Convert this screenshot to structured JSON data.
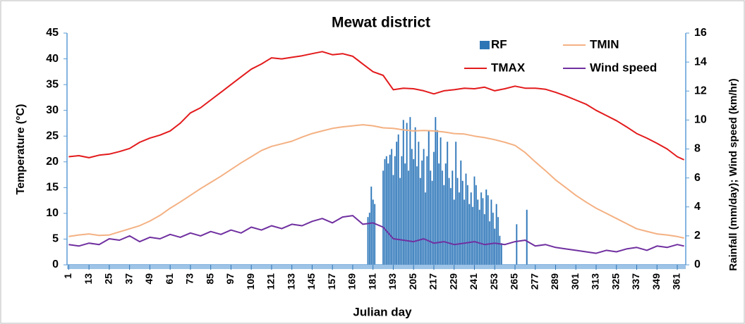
{
  "chart_data": {
    "type": "combo",
    "title": "Mewat district",
    "x_label": "Julian day",
    "y_label": "Temperature (°C)",
    "y2_label": "Rainfall (mm/day);  Wind speed (km/hr)",
    "xlim": [
      0,
      366
    ],
    "xticks": [
      1,
      13,
      25,
      37,
      49,
      61,
      73,
      85,
      97,
      109,
      121,
      133,
      145,
      157,
      169,
      181,
      193,
      205,
      217,
      229,
      241,
      253,
      265,
      277,
      289,
      301,
      313,
      325,
      337,
      349,
      361
    ],
    "ylim": [
      0,
      45
    ],
    "yticks": [
      0,
      5,
      10,
      15,
      20,
      25,
      30,
      35,
      40,
      45
    ],
    "y2lim": [
      0,
      16
    ],
    "y2ticks": [
      0,
      2,
      4,
      6,
      8,
      10,
      12,
      14,
      16
    ],
    "legend": "top-right",
    "series": [
      {
        "name": "RF",
        "type": "bar",
        "axis": "y2",
        "color": "#2e75b6",
        "x": [
          178,
          179,
          180,
          181,
          182,
          187,
          188,
          189,
          190,
          191,
          192,
          193,
          194,
          195,
          196,
          197,
          198,
          199,
          200,
          201,
          202,
          203,
          204,
          205,
          206,
          207,
          208,
          209,
          210,
          211,
          212,
          213,
          214,
          215,
          216,
          217,
          218,
          219,
          220,
          221,
          222,
          223,
          224,
          225,
          226,
          227,
          228,
          229,
          230,
          231,
          232,
          233,
          234,
          235,
          236,
          237,
          238,
          239,
          240,
          241,
          242,
          243,
          244,
          245,
          246,
          247,
          248,
          249,
          250,
          251,
          252,
          253,
          254,
          255,
          256,
          257,
          266,
          272
        ],
        "values": [
          3.3,
          3.6,
          5.4,
          4.5,
          4.2,
          6.5,
          7.3,
          7.5,
          7.0,
          7.6,
          8.0,
          6.2,
          7.5,
          8.5,
          9.0,
          6.0,
          7.5,
          10.0,
          7.0,
          9.8,
          6.5,
          10.2,
          8.0,
          7.3,
          9.5,
          6.8,
          8.5,
          6.0,
          7.2,
          8.0,
          5.0,
          7.5,
          9.3,
          6.5,
          5.8,
          7.8,
          10.2,
          9.3,
          7.0,
          8.8,
          6.5,
          5.5,
          7.0,
          8.5,
          6.0,
          5.3,
          6.5,
          4.5,
          8.5,
          6.0,
          5.0,
          7.2,
          5.8,
          4.5,
          6.3,
          5.5,
          4.2,
          5.0,
          4.0,
          6.1,
          5.5,
          4.5,
          3.8,
          5.0,
          4.6,
          3.5,
          5.2,
          4.8,
          3.0,
          4.5,
          3.6,
          2.5,
          4.2,
          3.3,
          2.0,
          1.5,
          2.8,
          3.8
        ]
      },
      {
        "name": "TMIN",
        "type": "line",
        "axis": "y",
        "color": "#f4b183",
        "x": [
          1,
          7,
          13,
          19,
          25,
          31,
          37,
          43,
          49,
          55,
          61,
          67,
          73,
          79,
          85,
          91,
          97,
          103,
          109,
          115,
          121,
          127,
          133,
          139,
          145,
          151,
          157,
          163,
          169,
          175,
          181,
          187,
          193,
          199,
          205,
          211,
          217,
          223,
          229,
          235,
          241,
          247,
          253,
          259,
          265,
          271,
          277,
          283,
          289,
          295,
          301,
          307,
          313,
          319,
          325,
          331,
          337,
          343,
          349,
          355,
          361,
          365
        ],
        "values": [
          5.5,
          5.8,
          6,
          5.7,
          5.8,
          6.4,
          7,
          7.6,
          8.5,
          9.6,
          11,
          12.2,
          13.5,
          14.8,
          16,
          17.2,
          18.5,
          19.8,
          21,
          22.2,
          23,
          23.5,
          24,
          24.8,
          25.5,
          26,
          26.5,
          26.8,
          27,
          27.2,
          27,
          26.6,
          26.5,
          26.2,
          26,
          26.1,
          26,
          25.8,
          25.5,
          25.4,
          25,
          24.7,
          24.3,
          23.8,
          23.2,
          21.8,
          20,
          18.3,
          16.5,
          15,
          13.5,
          12.2,
          11,
          10,
          9,
          8,
          7,
          6.5,
          6,
          5.8,
          5.5,
          5.2
        ]
      },
      {
        "name": "TMAX",
        "type": "line",
        "axis": "y",
        "color": "#e31a1c",
        "x": [
          1,
          7,
          13,
          19,
          25,
          31,
          37,
          43,
          49,
          55,
          61,
          67,
          73,
          79,
          85,
          91,
          97,
          103,
          109,
          115,
          121,
          127,
          133,
          139,
          145,
          151,
          157,
          163,
          169,
          175,
          181,
          187,
          193,
          199,
          205,
          211,
          217,
          223,
          229,
          235,
          241,
          247,
          253,
          259,
          265,
          271,
          277,
          283,
          289,
          295,
          301,
          307,
          313,
          319,
          325,
          331,
          337,
          343,
          349,
          355,
          361,
          365
        ],
        "values": [
          21,
          21.2,
          20.8,
          21.3,
          21.5,
          22,
          22.6,
          23.8,
          24.6,
          25.2,
          26,
          27.5,
          29.5,
          30.5,
          32,
          33.5,
          35,
          36.5,
          38,
          39,
          40.2,
          40,
          40.3,
          40.6,
          41,
          41.4,
          40.8,
          41,
          40.5,
          39,
          37.5,
          36.8,
          34,
          34.3,
          34.2,
          33.8,
          33.2,
          33.8,
          34,
          34.3,
          34.2,
          34.5,
          33.8,
          34.2,
          34.7,
          34.3,
          34.3,
          34.1,
          33.5,
          32.8,
          32,
          31.2,
          30,
          29,
          28,
          26.8,
          25.5,
          24.6,
          23.6,
          22.5,
          21,
          20.4
        ]
      },
      {
        "name": "Wind speed",
        "type": "line",
        "axis": "y2",
        "color": "#7030a0",
        "x": [
          1,
          7,
          13,
          19,
          25,
          31,
          37,
          43,
          49,
          55,
          61,
          67,
          73,
          79,
          85,
          91,
          97,
          103,
          109,
          115,
          121,
          127,
          133,
          139,
          145,
          151,
          157,
          163,
          169,
          175,
          181,
          187,
          193,
          199,
          205,
          211,
          217,
          223,
          229,
          235,
          241,
          247,
          253,
          259,
          265,
          271,
          277,
          283,
          289,
          295,
          301,
          307,
          313,
          319,
          325,
          331,
          337,
          343,
          349,
          355,
          361,
          365
        ],
        "values": [
          1.4,
          1.3,
          1.5,
          1.4,
          1.8,
          1.7,
          2.0,
          1.6,
          1.9,
          1.8,
          2.1,
          1.9,
          2.2,
          2.0,
          2.3,
          2.1,
          2.4,
          2.2,
          2.6,
          2.4,
          2.7,
          2.5,
          2.8,
          2.7,
          3.0,
          3.2,
          2.9,
          3.3,
          3.4,
          2.8,
          2.9,
          2.6,
          1.8,
          1.7,
          1.6,
          1.8,
          1.5,
          1.6,
          1.4,
          1.5,
          1.6,
          1.4,
          1.5,
          1.4,
          1.6,
          1.7,
          1.3,
          1.4,
          1.2,
          1.1,
          1.0,
          0.9,
          0.8,
          1.0,
          0.9,
          1.1,
          1.2,
          1.0,
          1.3,
          1.2,
          1.4,
          1.3
        ]
      }
    ]
  }
}
